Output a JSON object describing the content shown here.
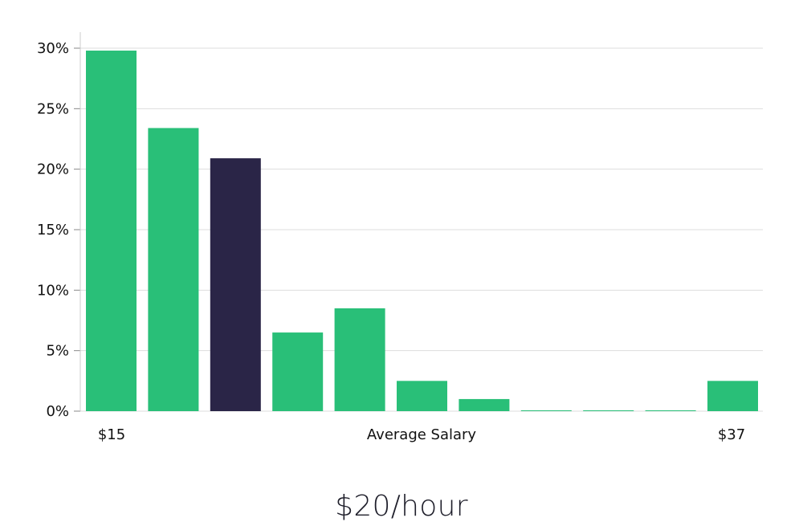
{
  "chart_data": {
    "type": "bar",
    "highlight_index": 2,
    "values": [
      29.8,
      23.4,
      20.9,
      6.5,
      8.5,
      2.5,
      1.0,
      0.05,
      0.05,
      0.05,
      2.5
    ],
    "y_ticks": [
      "0%",
      "5%",
      "10%",
      "15%",
      "20%",
      "25%",
      "30%"
    ],
    "ylim": [
      0,
      31
    ],
    "x_left_label": "$15",
    "x_right_label": "$37",
    "xlabel": "Average Salary",
    "grid": true,
    "colors": {
      "bar": "#29bf78",
      "highlight": "#2a2547",
      "grid": "#dddddd",
      "axis": "#cccccc"
    }
  },
  "headline": "$20/hour"
}
